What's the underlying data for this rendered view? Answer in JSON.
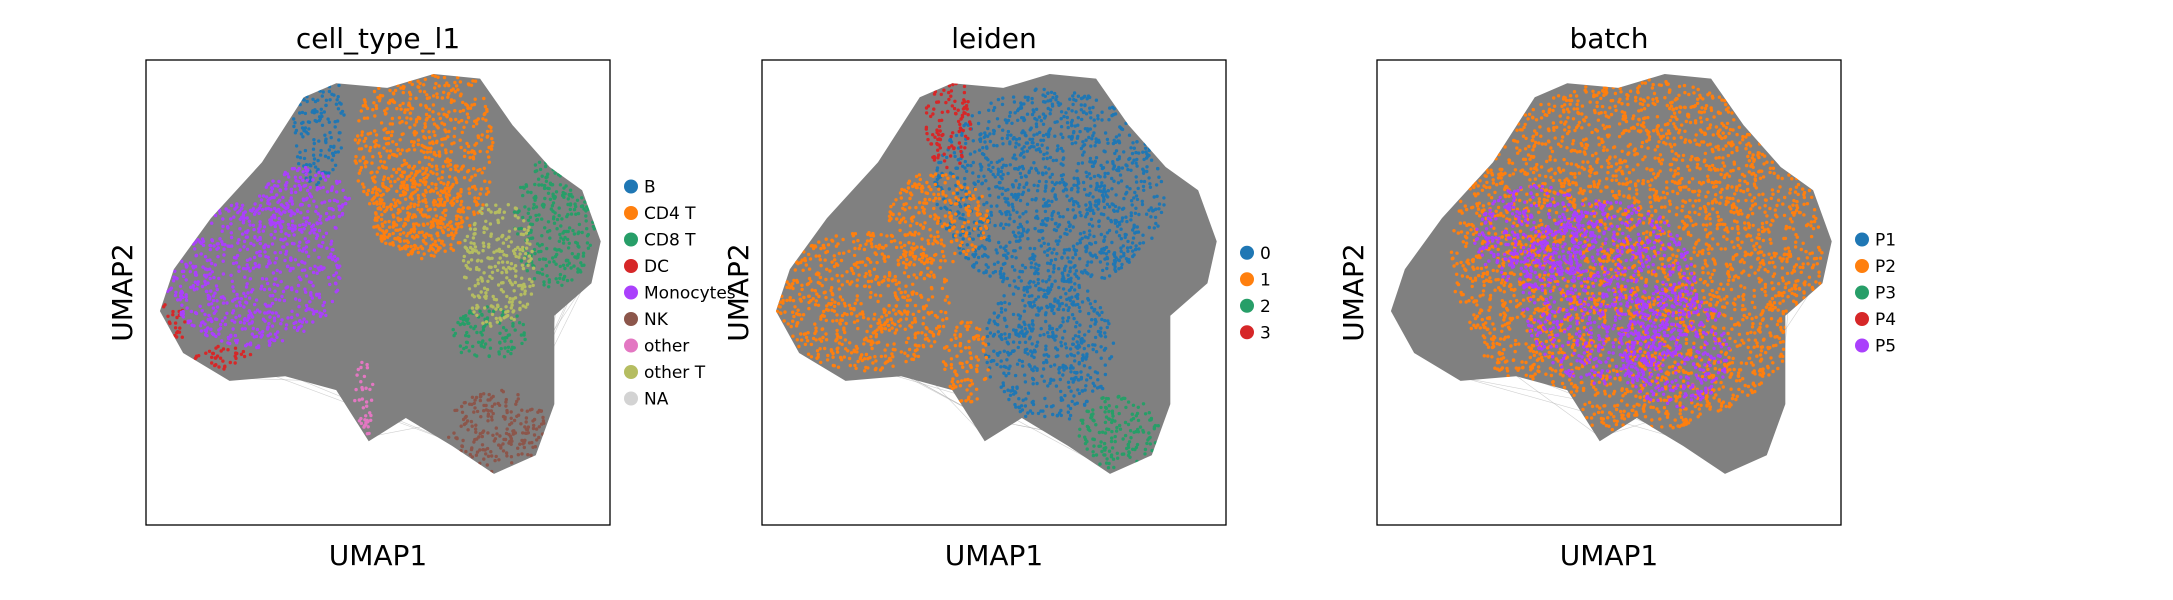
{
  "chart_data": [
    {
      "type": "scatter",
      "title": "cell_type_l1",
      "xlabel": "UMAP1",
      "ylabel": "UMAP2",
      "grid": false,
      "ticks": "none",
      "legend_placement": "right",
      "background_edges": true,
      "series": [
        {
          "name": "B",
          "color": "#1f77b4",
          "regions": [
            [
              -1.3,
              3.7,
              0.6,
              1.4
            ]
          ]
        },
        {
          "name": "CD4 T",
          "color": "#ff7f0e",
          "regions": [
            [
              1.0,
              3.0,
              1.5,
              2.3
            ],
            [
              0.8,
              1.8,
              1.0,
              1.0
            ]
          ]
        },
        {
          "name": "CD8 T",
          "color": "#279e68",
          "regions": [
            [
              3.8,
              1.5,
              0.9,
              1.4
            ],
            [
              2.4,
              -0.9,
              0.8,
              0.6
            ]
          ]
        },
        {
          "name": "DC",
          "color": "#d62728",
          "regions": [
            [
              -4.4,
              -0.6,
              0.3,
              0.5
            ],
            [
              -3.4,
              -1.4,
              0.7,
              0.25
            ]
          ]
        },
        {
          "name": "Monocytes",
          "color": "#aa40fc",
          "regions": [
            [
              -2.7,
              0.4,
              1.9,
              1.6
            ],
            [
              -1.6,
              1.9,
              1.0,
              0.8
            ]
          ]
        },
        {
          "name": "NK",
          "color": "#8c564b",
          "regions": [
            [
              2.6,
              -3.0,
              1.1,
              0.9
            ]
          ]
        },
        {
          "name": "other",
          "color": "#e377c2",
          "regions": [
            [
              -0.3,
              -2.3,
              0.2,
              0.9
            ]
          ]
        },
        {
          "name": "other T",
          "color": "#b5bd61",
          "regions": [
            [
              2.6,
              0.6,
              0.8,
              1.4
            ]
          ]
        },
        {
          "name": "NA",
          "color": "#d3d3d3",
          "regions": []
        }
      ]
    },
    {
      "type": "scatter",
      "title": "leiden",
      "xlabel": "UMAP1",
      "ylabel": "UMAP2",
      "grid": false,
      "ticks": "none",
      "legend_placement": "right",
      "background_edges": true,
      "series": [
        {
          "name": "0",
          "color": "#1f77b4",
          "regions": [
            [
              1.2,
              2.2,
              2.5,
              2.2
            ],
            [
              1.2,
              -1.2,
              1.4,
              1.6
            ]
          ]
        },
        {
          "name": "1",
          "color": "#ff7f0e",
          "regions": [
            [
              -2.8,
              -0.2,
              1.9,
              1.5
            ],
            [
              -1.2,
              1.6,
              1.1,
              1.0
            ],
            [
              -0.6,
              -1.5,
              0.5,
              0.9
            ]
          ]
        },
        {
          "name": "2",
          "color": "#279e68",
          "regions": [
            [
              2.7,
              -3.0,
              0.9,
              0.8
            ]
          ]
        },
        {
          "name": "3",
          "color": "#d62728",
          "regions": [
            [
              -1.0,
              3.7,
              0.5,
              1.1
            ]
          ]
        }
      ]
    },
    {
      "type": "scatter",
      "title": "batch",
      "xlabel": "UMAP1",
      "ylabel": "UMAP2",
      "grid": false,
      "ticks": "none",
      "legend_placement": "right",
      "background_edges": true,
      "series": [
        {
          "name": "P1",
          "color": "#1f77b4",
          "regions": []
        },
        {
          "name": "P2",
          "color": "#ff7f0e",
          "regions": [
            [
              0.6,
              0.8,
              4.0,
              3.8
            ]
          ]
        },
        {
          "name": "P3",
          "color": "#279e68",
          "regions": []
        },
        {
          "name": "P4",
          "color": "#d62728",
          "regions": []
        },
        {
          "name": "P5",
          "color": "#aa40fc",
          "regions": [
            [
              0.0,
              0.0,
              1.9,
              2.0
            ],
            [
              -1.6,
              1.2,
              1.3,
              1.1
            ],
            [
              1.4,
              -1.2,
              1.2,
              1.3
            ]
          ]
        }
      ]
    }
  ]
}
